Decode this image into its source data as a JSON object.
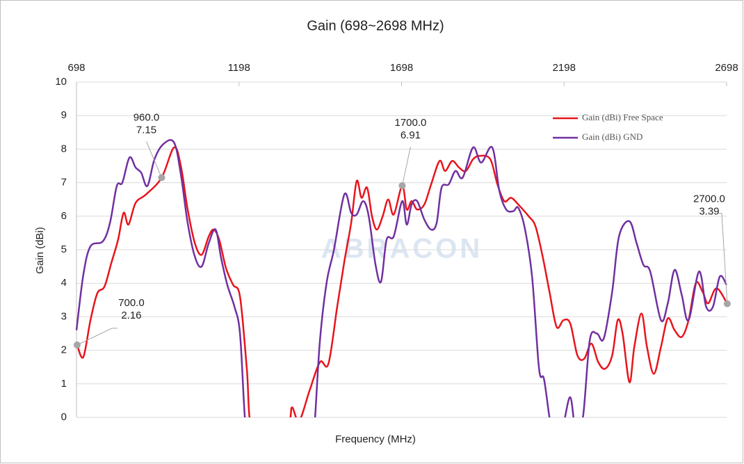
{
  "chart_data": {
    "type": "line",
    "title": "Gain (698~2698 MHz)",
    "x_label": "Frequency (MHz)",
    "y_label": "Gain (dBi)",
    "watermark": "ABRACON",
    "xlim": [
      698,
      2698
    ],
    "xticks": [
      698,
      1198,
      1698,
      2198,
      2698
    ],
    "ylim": [
      0,
      10
    ],
    "yticks": [
      0,
      1,
      2,
      3,
      4,
      5,
      6,
      7,
      8,
      9,
      10
    ],
    "grid": true,
    "legend": "upper right",
    "series": [
      {
        "name": "Gain (dBi) Free Space",
        "color": "#e8141b",
        "x": [
          700,
          719,
          741,
          762,
          784,
          805,
          826,
          843,
          858,
          880,
          912,
          960,
          998,
          1019,
          1040,
          1062,
          1083,
          1105,
          1120,
          1137,
          1158,
          1180,
          1201,
          1222,
          1237,
          1297,
          1351,
          1361,
          1383,
          1415,
          1447,
          1473,
          1500,
          1522,
          1543,
          1560,
          1575,
          1592,
          1607,
          1622,
          1640,
          1657,
          1674,
          1700,
          1714,
          1729,
          1746,
          1768,
          1789,
          1815,
          1832,
          1854,
          1875,
          1896,
          1918,
          1939,
          1971,
          1993,
          2014,
          2035,
          2057,
          2089,
          2110,
          2132,
          2153,
          2175,
          2196,
          2217,
          2239,
          2260,
          2282,
          2303,
          2324,
          2346,
          2363,
          2378,
          2399,
          2414,
          2436,
          2453,
          2474,
          2496,
          2517,
          2538,
          2560,
          2581,
          2603,
          2624,
          2641,
          2667,
          2700
        ],
        "values": [
          2.16,
          1.8,
          2.9,
          3.7,
          3.9,
          4.6,
          5.3,
          6.1,
          5.75,
          6.4,
          6.65,
          7.15,
          8.05,
          7.5,
          6.2,
          5.2,
          4.85,
          5.4,
          5.6,
          5.3,
          4.45,
          3.95,
          3.6,
          1.45,
          -0.4,
          -1.5,
          -0.2,
          0.3,
          -0.1,
          0.8,
          1.65,
          1.6,
          3.3,
          4.65,
          5.8,
          7.05,
          6.55,
          6.85,
          6.0,
          5.6,
          6.0,
          6.5,
          6.05,
          6.91,
          6.2,
          6.45,
          6.2,
          6.35,
          6.95,
          7.65,
          7.35,
          7.65,
          7.45,
          7.35,
          7.7,
          7.8,
          7.7,
          6.95,
          6.45,
          6.55,
          6.35,
          6.0,
          5.7,
          4.8,
          3.75,
          2.7,
          2.9,
          2.8,
          1.85,
          1.75,
          2.2,
          1.65,
          1.45,
          1.85,
          2.9,
          2.5,
          1.05,
          2.1,
          3.1,
          2.1,
          1.3,
          2.1,
          2.95,
          2.6,
          2.4,
          2.9,
          4.0,
          3.75,
          3.4,
          3.85,
          3.39
        ]
      },
      {
        "name": "Gain (dBi) GND",
        "color": "#7030a0",
        "x": [
          698,
          719,
          741,
          779,
          801,
          822,
          839,
          861,
          880,
          897,
          916,
          938,
          965,
          998,
          1019,
          1040,
          1062,
          1083,
          1105,
          1126,
          1143,
          1162,
          1184,
          1201,
          1216,
          1229,
          1319,
          1426,
          1432,
          1447,
          1468,
          1490,
          1522,
          1543,
          1560,
          1580,
          1597,
          1618,
          1635,
          1652,
          1674,
          1700,
          1714,
          1729,
          1746,
          1768,
          1789,
          1806,
          1821,
          1843,
          1864,
          1886,
          1918,
          1943,
          1977,
          1999,
          2020,
          2042,
          2057,
          2078,
          2100,
          2121,
          2136,
          2153,
          2170,
          2196,
          2217,
          2234,
          2256,
          2277,
          2299,
          2320,
          2346,
          2367,
          2399,
          2421,
          2442,
          2463,
          2496,
          2517,
          2538,
          2560,
          2581,
          2613,
          2635,
          2656,
          2677,
          2698
        ],
        "values": [
          2.6,
          4.25,
          5.1,
          5.25,
          5.8,
          6.9,
          7.0,
          7.75,
          7.45,
          7.3,
          6.9,
          7.7,
          8.15,
          8.2,
          7.25,
          5.8,
          4.8,
          4.5,
          5.2,
          5.6,
          4.75,
          3.95,
          3.3,
          2.5,
          0,
          -0.8,
          -1.5,
          -0.5,
          0,
          2.3,
          4.05,
          5.0,
          6.65,
          6.1,
          6.05,
          6.45,
          6.0,
          4.55,
          4.05,
          5.3,
          5.4,
          6.45,
          5.75,
          6.35,
          6.45,
          5.9,
          5.6,
          5.8,
          6.85,
          6.95,
          7.35,
          7.15,
          8.05,
          7.6,
          8.05,
          6.75,
          6.2,
          6.15,
          6.25,
          5.6,
          4.15,
          1.45,
          1.15,
          0,
          -1,
          -0.2,
          0.6,
          -0.4,
          0,
          2.3,
          2.5,
          2.35,
          3.75,
          5.4,
          5.85,
          5.2,
          4.55,
          4.35,
          2.9,
          3.4,
          4.4,
          3.65,
          2.9,
          4.35,
          3.3,
          3.3,
          4.2,
          3.95
        ]
      }
    ],
    "annotations": [
      {
        "x": 700,
        "x_label": "700.0",
        "y": 2.16
      },
      {
        "x": 960,
        "x_label": "960.0",
        "y": 7.15
      },
      {
        "x": 1700,
        "x_label": "1700.0",
        "y": 6.91
      },
      {
        "x": 2700,
        "x_label": "2700.0",
        "y": 3.39
      }
    ]
  }
}
